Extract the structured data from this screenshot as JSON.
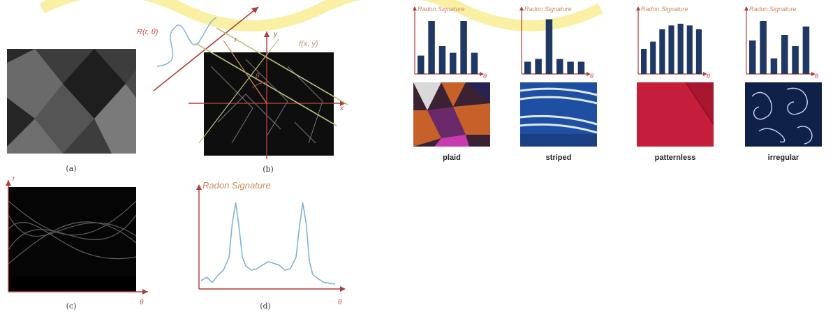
{
  "figure_left": {
    "captions": [
      "(a)",
      "(b)",
      "(c)",
      "(d)"
    ],
    "labels": {
      "radon_transform": "R(r, θ)",
      "function": "f(x, y)",
      "r": "r",
      "theta": "θ",
      "x_axis": "x",
      "y_axis": "y"
    },
    "signature_title": "Radon Signature",
    "theta_axis": "θ",
    "r_axis": "r"
  },
  "figure_right": {
    "signature_title": "Radon Signature",
    "theta_axis": "θ",
    "textures": [
      {
        "label": "plaid"
      },
      {
        "label": "striped"
      },
      {
        "label": "patternless"
      },
      {
        "label": "irregular"
      }
    ]
  },
  "chart_data": [
    {
      "type": "line",
      "title": "Radon Signature",
      "xlabel": "θ",
      "ylabel": "",
      "x": [
        0,
        5,
        10,
        15,
        20,
        25,
        28,
        31,
        34,
        37,
        40,
        45,
        50,
        55,
        60,
        65,
        70,
        75,
        80,
        85,
        88,
        91,
        94,
        97,
        100,
        105,
        110,
        115,
        120
      ],
      "y": [
        0.08,
        0.12,
        0.06,
        0.14,
        0.2,
        0.35,
        0.75,
        0.98,
        0.7,
        0.35,
        0.25,
        0.2,
        0.22,
        0.26,
        0.3,
        0.28,
        0.26,
        0.2,
        0.22,
        0.35,
        0.7,
        0.98,
        0.75,
        0.3,
        0.15,
        0.1,
        0.06,
        0.05,
        0.04
      ],
      "ylim": [
        0,
        1.05
      ]
    },
    {
      "type": "bar",
      "title": "Radon Signature",
      "xlabel": "θ",
      "categories": [
        "1",
        "2",
        "3",
        "4",
        "5",
        "6"
      ],
      "values": [
        0.33,
        0.95,
        0.5,
        0.38,
        0.95,
        0.38
      ],
      "ylim": [
        0,
        1
      ]
    },
    {
      "type": "bar",
      "title": "Radon Signature",
      "xlabel": "θ",
      "categories": [
        "1",
        "2",
        "3",
        "4",
        "5",
        "6"
      ],
      "values": [
        0.22,
        0.27,
        0.98,
        0.27,
        0.22,
        0.22
      ],
      "ylim": [
        0,
        1
      ]
    },
    {
      "type": "bar",
      "title": "Radon Signature",
      "xlabel": "θ",
      "categories": [
        "1",
        "2",
        "3",
        "4",
        "5",
        "6",
        "7"
      ],
      "values": [
        0.45,
        0.58,
        0.8,
        0.87,
        0.9,
        0.87,
        0.8
      ],
      "ylim": [
        0,
        1
      ]
    },
    {
      "type": "bar",
      "title": "Radon Signature",
      "xlabel": "θ",
      "categories": [
        "1",
        "2",
        "3",
        "4",
        "5",
        "6"
      ],
      "values": [
        0.6,
        0.95,
        0.28,
        0.7,
        0.5,
        0.85
      ],
      "ylim": [
        0,
        1
      ]
    }
  ],
  "colors": {
    "axis_red": "#b23a3a",
    "bar_navy": "#1f3864",
    "curve_blue": "#7fb3d6",
    "accent_orange": "#c98a62",
    "watermark_yellow": "#f5e35a"
  }
}
